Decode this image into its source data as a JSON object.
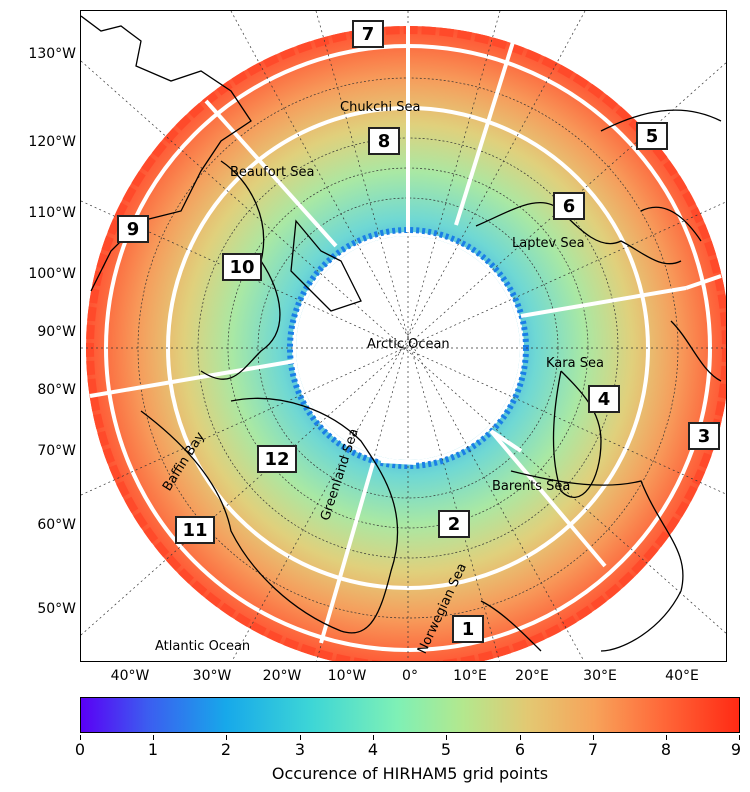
{
  "map": {
    "lat_labels": [
      "130°W",
      "120°W",
      "110°W",
      "100°W",
      "90°W",
      "80°W",
      "70°W",
      "60°W",
      "50°W"
    ],
    "lon_labels": [
      "40°W",
      "30°W",
      "20°W",
      "10°W",
      "0°",
      "10°E",
      "20°E",
      "30°E",
      "40°E"
    ],
    "seas": {
      "chukchi": "Chukchi Sea",
      "beaufort": "Beaufort Sea",
      "laptev": "Laptev Sea",
      "arctic": "Arctic Ocean",
      "kara": "Kara Sea",
      "barents": "Barents Sea",
      "greenland": "Greenland Sea",
      "norwegian": "Norwegian Sea",
      "baffin": "Baffin Bay",
      "atlantic": "Atlantic Ocean"
    },
    "sectors": [
      "1",
      "2",
      "3",
      "4",
      "5",
      "6",
      "7",
      "8",
      "9",
      "10",
      "11",
      "12"
    ]
  },
  "colorbar": {
    "ticks": [
      "0",
      "1",
      "2",
      "3",
      "4",
      "5",
      "6",
      "7",
      "8",
      "9"
    ],
    "title": "Occurence of HIRHAM5 grid points",
    "colors": [
      "#5a00f5",
      "#17a8ea",
      "#7ef0b6",
      "#e3c872",
      "#ff6a3a",
      "#ff2a14"
    ]
  }
}
